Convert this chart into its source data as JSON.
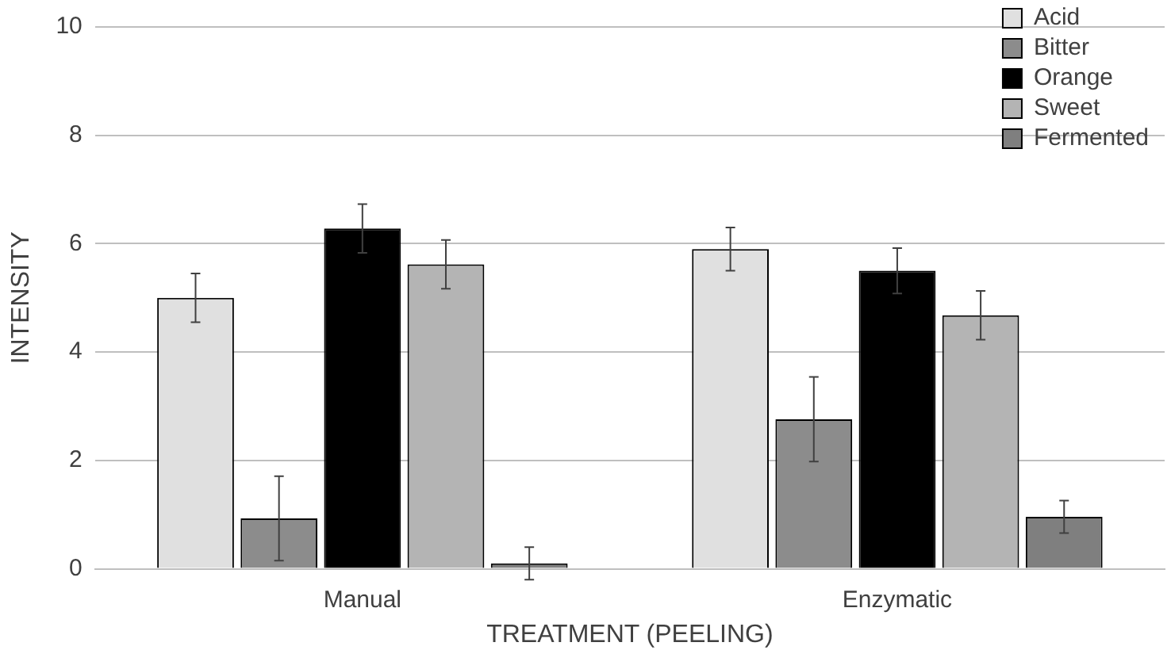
{
  "chart_data": {
    "type": "bar",
    "xlabel": "TREATMENT (PEELING)",
    "ylabel": "INTENSITY",
    "categories": [
      "Manual",
      "Enzymatic"
    ],
    "ylim": [
      0,
      10
    ],
    "yticks": [
      0,
      2,
      4,
      6,
      8,
      10
    ],
    "grid": "y",
    "legend": "top right",
    "series": [
      {
        "name": "Acid",
        "color": "#e0e0e0",
        "values": [
          5.0,
          5.9
        ],
        "errors": [
          0.45,
          0.4
        ]
      },
      {
        "name": "Bitter",
        "color": "#8c8c8c",
        "values": [
          0.93,
          2.76
        ],
        "errors": [
          0.78,
          0.78
        ]
      },
      {
        "name": "Orange",
        "color": "#000000",
        "values": [
          6.28,
          5.5
        ],
        "errors": [
          0.45,
          0.42
        ]
      },
      {
        "name": "Sweet",
        "color": "#b4b4b4",
        "values": [
          5.62,
          4.68
        ],
        "errors": [
          0.45,
          0.45
        ]
      },
      {
        "name": "Fermented",
        "color": "#7f7f7f",
        "values": [
          0.1,
          0.96
        ],
        "errors": [
          0.3,
          0.3
        ]
      }
    ]
  }
}
